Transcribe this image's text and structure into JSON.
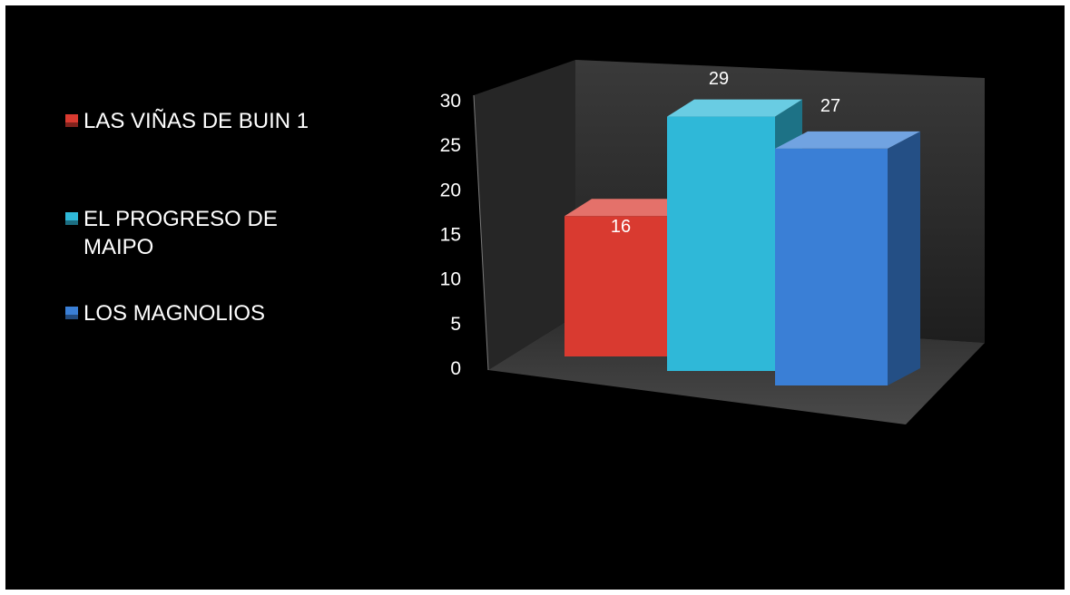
{
  "chart_data": {
    "type": "bar",
    "title": "",
    "xlabel": "",
    "ylabel": "",
    "categories": [
      "LAS VIÑAS DE BUIN 1",
      "EL PROGRESO DE MAIPO",
      "LOS MAGNOLIOS"
    ],
    "values": [
      16,
      29,
      27
    ],
    "data_labels": [
      "16",
      "29",
      "27"
    ],
    "colors": [
      "#d93a30",
      "#2fb8d8",
      "#3a7fd6"
    ],
    "ylim": [
      0,
      30
    ],
    "yticks": [
      "0",
      "5",
      "10",
      "15",
      "20",
      "25",
      "30"
    ],
    "legend_position": "left",
    "grid": false,
    "style": "3d-clustered-column"
  }
}
